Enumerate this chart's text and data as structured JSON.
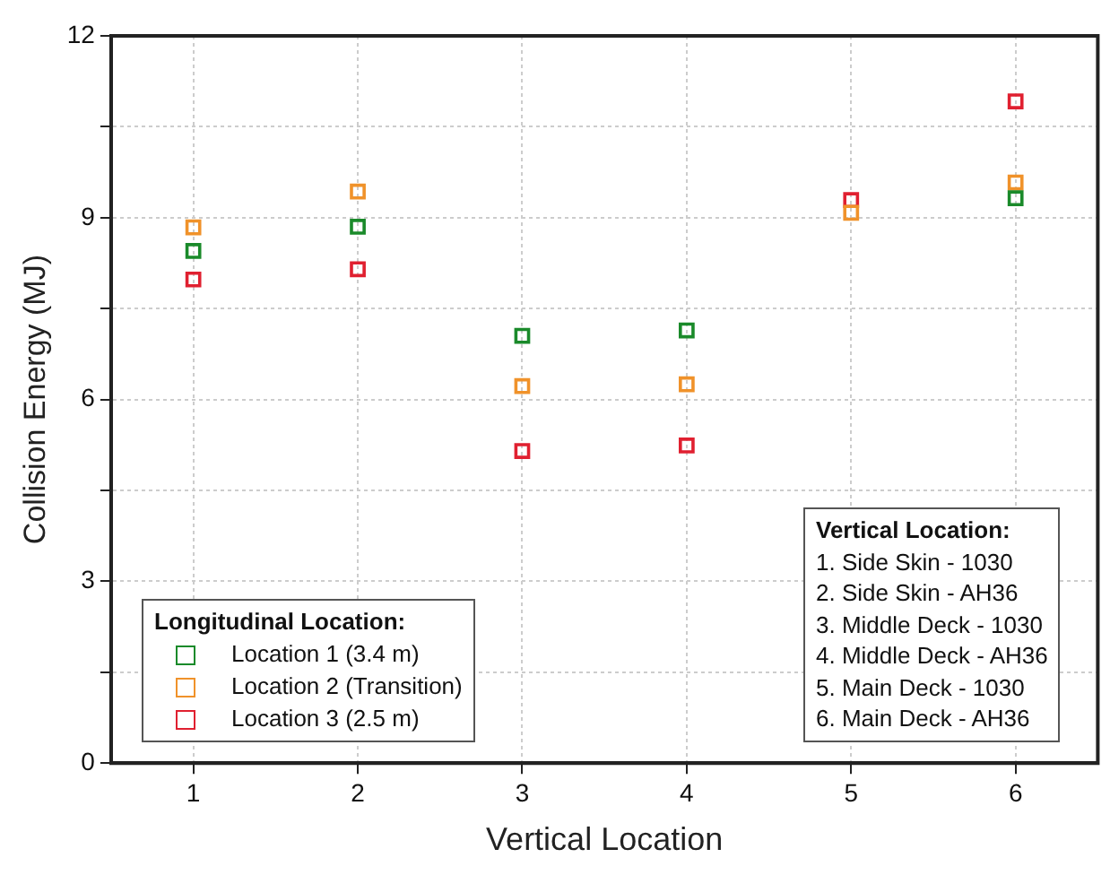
{
  "chart_data": {
    "type": "scatter",
    "xlabel": "Vertical Location",
    "ylabel": "Collision Energy (MJ)",
    "legend_title": "Longitudinal Location:",
    "x": [
      1,
      2,
      3,
      4,
      5,
      6
    ],
    "series": [
      {
        "name": "Location 1 (3.4 m)",
        "color": "#1a8a2a",
        "values": [
          8.45,
          8.85,
          7.05,
          7.14,
          null,
          9.32
        ]
      },
      {
        "name": "Location 2 (Transition)",
        "color": "#f0922a",
        "values": [
          8.84,
          9.43,
          6.22,
          6.25,
          9.08,
          9.58
        ]
      },
      {
        "name": "Location 3 (2.5 m)",
        "color": "#e02030",
        "values": [
          7.98,
          8.15,
          5.15,
          5.24,
          9.29,
          10.92
        ]
      }
    ],
    "xlim": [
      0.5,
      6.5
    ],
    "xticks": [
      1,
      2,
      3,
      4,
      5,
      6
    ],
    "ylim": [
      0,
      12
    ],
    "yticks": [
      0,
      {
        "value": 1.5,
        "label": null
      },
      3,
      {
        "value": 4.5,
        "label": null
      },
      6,
      {
        "value": 7.5,
        "label": null
      },
      9,
      {
        "value": 10.5,
        "label": null
      },
      12
    ],
    "grid": true,
    "legend": "bottom left",
    "marker": "square",
    "annotations": [
      "Vertical Location:",
      "1. Side Skin - 1030",
      "2. Side Skin - AH36",
      "3. Middle Deck - 1030",
      "4. Middle Deck - AH36",
      "5. Main Deck - 1030",
      "6. Main Deck - AH36"
    ]
  }
}
